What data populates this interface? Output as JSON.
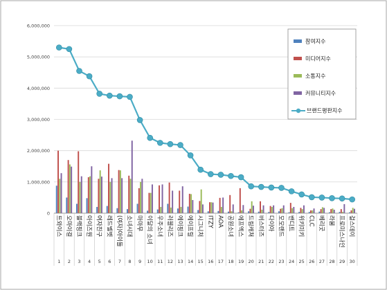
{
  "chart_data": {
    "type": "bar",
    "y_ticks": [
      "0",
      "1,000,000",
      "2,000,000",
      "3,000,000",
      "4,000,000",
      "5,000,000",
      "6,000,000"
    ],
    "ylim": [
      0,
      6000000
    ],
    "grid": true,
    "legend_position": "right",
    "index_labels": [
      "1",
      "2",
      "3",
      "4",
      "5",
      "6",
      "7",
      "8",
      "9",
      "10",
      "11",
      "12",
      "13",
      "14",
      "15",
      "16",
      "17",
      "18",
      "19",
      "20",
      "21",
      "22",
      "23",
      "24",
      "25",
      "26",
      "27",
      "28",
      "29",
      "30"
    ],
    "categories": [
      "트와이스",
      "오마이걸",
      "블랙핑크",
      "아이즈원",
      "여자친구",
      "레드벨벳",
      "(여자)아이들",
      "소녀시대",
      "마마무",
      "이달의 소녀",
      "우주소녀",
      "러블리즈",
      "에이핑크",
      "에이프릴",
      "시그니처",
      "ITZY",
      "AOA",
      "공원소녀",
      "에프엑스",
      "드림캐쳐",
      "버스터즈",
      "다이아",
      "모모랜드",
      "밴디트",
      "위키미키",
      "CLC",
      "베리굿",
      "라붐",
      "프로미스나인",
      "걸스데이"
    ],
    "bar_series": [
      {
        "name": "참여지수",
        "color": "#4f81bd",
        "values": [
          880000,
          500000,
          300000,
          480000,
          200000,
          230000,
          160000,
          130000,
          300000,
          80000,
          120000,
          300000,
          150000,
          210000,
          100000,
          60000,
          70000,
          50000,
          30000,
          60000,
          50000,
          40000,
          60000,
          30000,
          40000,
          40000,
          50000,
          30000,
          40000,
          30000
        ]
      },
      {
        "name": "미디어지수",
        "color": "#c0504d",
        "values": [
          2000000,
          1700000,
          1980000,
          1150000,
          1100000,
          1580000,
          1380000,
          1200000,
          800000,
          650000,
          890000,
          980000,
          720000,
          620000,
          390000,
          350000,
          490000,
          580000,
          800000,
          140000,
          380000,
          230000,
          140000,
          330000,
          170000,
          90000,
          130000,
          130000,
          130000,
          90000
        ]
      },
      {
        "name": "소통지수",
        "color": "#9bbb59",
        "values": [
          1100000,
          1560000,
          1000000,
          1180000,
          1370000,
          1000000,
          1370000,
          1100000,
          1000000,
          650000,
          200000,
          180000,
          200000,
          610000,
          760000,
          350000,
          200000,
          60000,
          90000,
          380000,
          110000,
          200000,
          160000,
          160000,
          130000,
          90000,
          190000,
          150000,
          40000,
          170000
        ]
      },
      {
        "name": "커뮤니티지수",
        "color": "#8064a2",
        "values": [
          1280000,
          1490000,
          1180000,
          1500000,
          1170000,
          1120000,
          1120000,
          2320000,
          1100000,
          920000,
          920000,
          720000,
          860000,
          420000,
          280000,
          340000,
          500000,
          280000,
          260000,
          240000,
          250000,
          250000,
          250000,
          200000,
          250000,
          150000,
          170000,
          110000,
          290000,
          140000
        ]
      }
    ],
    "line_series": {
      "name": "브랜드평판지수",
      "color": "#4bacc6",
      "values": [
        5300000,
        5250000,
        4550000,
        4380000,
        3820000,
        3760000,
        3740000,
        3720000,
        2980000,
        2410000,
        2250000,
        2210000,
        2180000,
        1850000,
        1390000,
        1250000,
        1230000,
        1190000,
        1150000,
        860000,
        840000,
        820000,
        810000,
        700000,
        600000,
        510000,
        500000,
        480000,
        470000,
        440000
      ]
    }
  }
}
